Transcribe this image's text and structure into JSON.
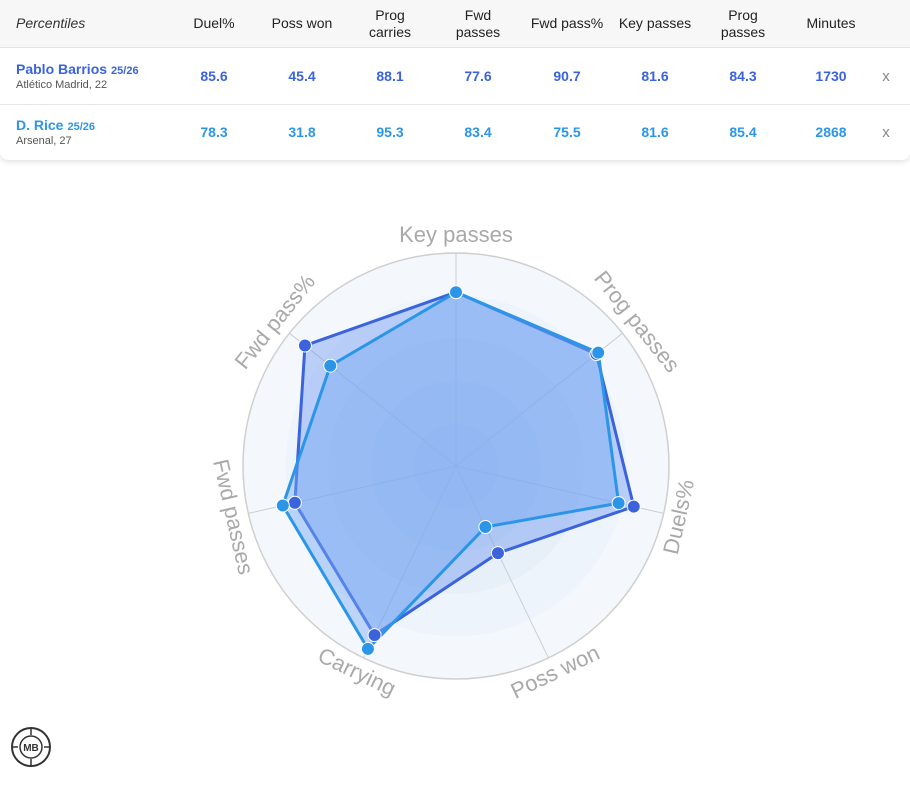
{
  "table": {
    "header_first": "Percentiles",
    "headers": [
      "Duel%",
      "Poss won",
      "Prog\ncarries",
      "Fwd\npasses",
      "Fwd pass%",
      "Key passes",
      "Prog\npasses",
      "Minutes"
    ],
    "rows": [
      {
        "name": "Pablo Barrios",
        "season": "25/26",
        "team": "Atlético Madrid, 22",
        "values": [
          "85.6",
          "45.4",
          "88.1",
          "77.6",
          "90.7",
          "81.6",
          "84.3",
          "1730"
        ],
        "remove": "x"
      },
      {
        "name": "D. Rice",
        "season": "25/26",
        "team": "Arsenal, 27",
        "values": [
          "78.3",
          "31.8",
          "95.3",
          "83.4",
          "75.5",
          "81.6",
          "85.4",
          "2868"
        ],
        "remove": "x"
      }
    ]
  },
  "colors": {
    "player1": "#3a63dc",
    "player2": "#2b96e8",
    "fill": "#8fb6f7"
  },
  "chart_data": {
    "type": "radar",
    "axes": [
      "Key passes",
      "Prog passes",
      "Duels%",
      "Poss won",
      "Carrying",
      "Fwd passes",
      "Fwd pass%"
    ],
    "range": [
      0,
      100
    ],
    "series": [
      {
        "name": "Pablo Barrios",
        "values": [
          81.6,
          84.3,
          85.6,
          45.4,
          88.1,
          77.6,
          90.7
        ]
      },
      {
        "name": "D. Rice",
        "values": [
          81.6,
          85.4,
          78.3,
          31.8,
          95.3,
          83.4,
          75.5
        ]
      }
    ]
  },
  "logo": {
    "text": "MB"
  }
}
